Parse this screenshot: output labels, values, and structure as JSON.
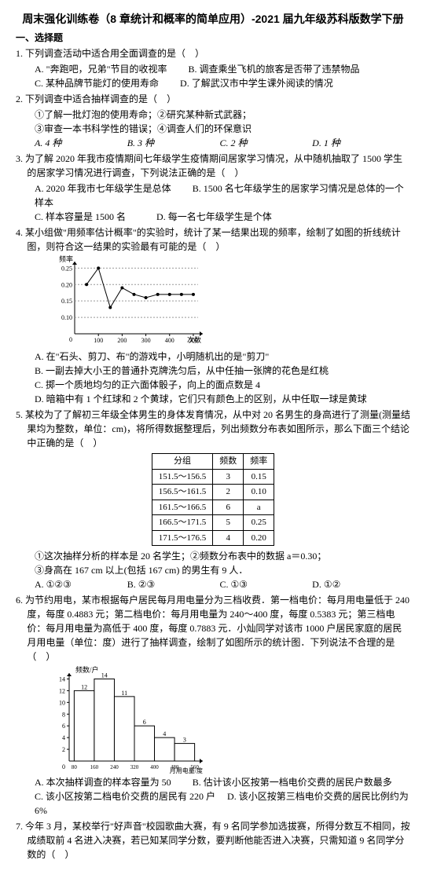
{
  "title": "周末强化训练卷（8 章统计和概率的简单应用）-2021 届九年级苏科版数学下册",
  "section1": "一、选择题",
  "q1": {
    "stem": "1. 下列调查活动中适合用全面调查的是（　）",
    "a": "A. \"奔跑吧，兄弟\"节目的收视率",
    "b": "B. 调查乘坐飞机的旅客是否带了违禁物品",
    "c": "C. 某种品牌节能灯的使用寿命",
    "d": "D. 了解武汉市中学生课外阅读的情况"
  },
  "q2": {
    "stem": "2. 下列调查中适合抽样调查的是（　）",
    "o1": "①了解一批灯泡的使用寿命；②研究某种新式武器；",
    "o2": "③审查一本书科学性的错误；④调查人们的环保意识",
    "a": "A. 4 种",
    "b": "B. 3 种",
    "c": "C. 2 种",
    "d": "D. 1 种"
  },
  "q3": {
    "stem": "3. 为了解 2020 年我市疫情期间七年级学生疫情期间居家学习情况，从中随机抽取了 1500 学生的居家学习情况进行调查，下列说法正确的是（　）",
    "a": "A. 2020 年我市七年级学生是总体",
    "b": "B. 1500 名七年级学生的居家学习情况是总体的一个样本",
    "c": "C. 样本容量是 1500 名",
    "d": "D. 每一名七年级学生是个体"
  },
  "q4": {
    "stem": "4. 某小组做\"用频率估计概率\"的实验时，统计了某一结果出现的频率，绘制了如图的折线统计图，则符合这一结果的实验最有可能的是（　）",
    "a": "A. 在\"石头、剪刀、布\"的游戏中，小明随机出的是\"剪刀\"",
    "b": "B. 一副去掉大小王的普通扑克牌洗匀后，从中任抽一张牌的花色是红桃",
    "c": "C. 掷一个质地均匀的正六面体骰子，向上的面点数是 4",
    "d": "D. 暗箱中有 1 个红球和 2 个黄球，它们只有颜色上的区别，从中任取一球是黄球",
    "chart": {
      "type": "line",
      "x_label": "次数",
      "y_label": "频率",
      "x_ticks": [
        100,
        200,
        300,
        400,
        500
      ],
      "y_ticks": [
        0.1,
        0.15,
        0.2,
        0.25
      ],
      "points": [
        [
          50,
          0.2
        ],
        [
          100,
          0.25
        ],
        [
          150,
          0.13
        ],
        [
          200,
          0.19
        ],
        [
          250,
          0.17
        ],
        [
          300,
          0.16
        ],
        [
          350,
          0.17
        ],
        [
          400,
          0.17
        ],
        [
          450,
          0.17
        ],
        [
          500,
          0.17
        ]
      ],
      "line_color": "#000000",
      "marker": "circle",
      "marker_color": "#000000",
      "background_color": "#ffffff",
      "axis_color": "#000000",
      "ylim": [
        0.05,
        0.27
      ],
      "xlim": [
        0,
        520
      ]
    }
  },
  "q5": {
    "stem": "5. 某校为了了解初三年级全体男生的身体发育情况，从中对 20 名男生的身高进行了测量(测量结果均为整数，单位：cm)，将所得数据整理后，列出频数分布表如图所示，那么下面三个结论中正确的是（　）",
    "table": {
      "headers": [
        "分组",
        "频数",
        "频率"
      ],
      "rows": [
        [
          "151.5～156.5",
          "3",
          "0.15"
        ],
        [
          "156.5～161.5",
          "2",
          "0.10"
        ],
        [
          "161.5～166.5",
          "6",
          "a"
        ],
        [
          "166.5～171.5",
          "5",
          "0.25"
        ],
        [
          "171.5～176.5",
          "4",
          "0.20"
        ]
      ]
    },
    "s1": "①这次抽样分析的样本是 20 名学生；②频数分布表中的数据 a＝0.30；",
    "s2": "③身高在 167 cm 以上(包括 167 cm) 的男生有 9 人．",
    "a": "A. ①②③",
    "b": "B. ②③",
    "c": "C. ①③",
    "d": "D. ①②"
  },
  "q6": {
    "stem": "6. 为节约用电，某市根据每户居民每月用电量分为三档收费．第一档电价：每月用电量低于 240 度，每度 0.4883 元；第二档电价：每月用电量为 240～400 度，每度 0.5383 元；第三档电价：每月用电量为高低于 400 度，每度 0.7883 元．小灿同学对该市 1000 户居民家庭的居民月用电量（单位：度）进行了抽样调查，绘制了如图所示的统计图．下列说法不合理的是（　）",
    "a": "A. 本次抽样调查的样本容量为 50",
    "b": "B. 估计该小区按第一档电价交费的居民户数最多",
    "c": "C. 该小区按第二档电价交费的居民有 220 户",
    "d": "D. 该小区按第三档电价交费的居民比例约为 6%",
    "chart": {
      "type": "bar",
      "x_label": "月用电量/度",
      "y_label": "频数/户",
      "x_ticks": [
        80,
        160,
        240,
        320,
        400,
        480,
        560
      ],
      "bars": [
        {
          "from": 80,
          "to": 160,
          "value": 12,
          "label": "12"
        },
        {
          "from": 160,
          "to": 240,
          "value": 14,
          "label": "14"
        },
        {
          "from": 240,
          "to": 320,
          "value": 11,
          "label": "11"
        },
        {
          "from": 320,
          "to": 400,
          "value": 6,
          "label": "6"
        },
        {
          "from": 400,
          "to": 480,
          "value": 4,
          "label": "4"
        },
        {
          "from": 480,
          "to": 560,
          "value": 3,
          "label": "3"
        }
      ],
      "y_ticks": [
        2,
        4,
        6,
        8,
        10,
        12,
        14
      ],
      "bar_color": "#ffffff",
      "bar_border": "#000000",
      "axis_color": "#000000",
      "background_color": "#ffffff"
    }
  },
  "q7": {
    "stem": "7. 今年 3 月，某校举行\"好声音\"校园歌曲大赛，有 9 名同学参加选拔赛，所得分数互不相同，按成绩取前 4 名进入决赛，若已知某同学分数，要判断他能否进入决赛，只需知道 9 名同学分数的（　）"
  }
}
